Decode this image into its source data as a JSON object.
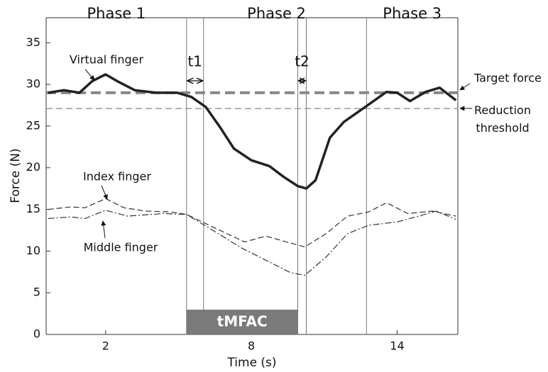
{
  "chart_data": {
    "type": "line",
    "xlabel": "Time (s)",
    "ylabel": "Force (N)",
    "xlim": [
      -0.45,
      16.5
    ],
    "ylim": [
      0,
      38
    ],
    "xticks": [
      2,
      8,
      14
    ],
    "yticks": [
      0,
      5,
      10,
      15,
      20,
      25,
      30,
      35
    ],
    "series": [
      {
        "name": "Virtual finger",
        "color": "#222222",
        "style": "solid",
        "x": [
          -0.37,
          0.28,
          0.92,
          1.45,
          2,
          2.47,
          3.2,
          4.07,
          4.95,
          5.53,
          6.12,
          6.7,
          7.28,
          8.0,
          8.74,
          9.33,
          9.91,
          10.26,
          10.64,
          11.23,
          11.81,
          12.74,
          13.56,
          14,
          14.53,
          15.17,
          15.75,
          16.42
        ],
        "values": [
          29.0,
          29.3,
          29.0,
          30.4,
          31.2,
          30.4,
          29.3,
          29.0,
          29.0,
          28.5,
          27.3,
          24.9,
          22.3,
          20.9,
          20.2,
          18.9,
          17.8,
          17.5,
          18.5,
          23.6,
          25.5,
          27.4,
          29.1,
          29.0,
          28.0,
          29.1,
          29.6,
          28.1
        ]
      },
      {
        "name": "Index finger",
        "color": "#333333",
        "style": "dashed",
        "x": [
          -0.37,
          0.57,
          1.15,
          2,
          2.76,
          3.64,
          4.66,
          5.33,
          6.41,
          7.72,
          8.6,
          9.33,
          10.2,
          11.08,
          11.96,
          12.83,
          13.56,
          14.44,
          15.46,
          16.42
        ],
        "values": [
          15.0,
          15.3,
          15.2,
          16.3,
          15.2,
          14.8,
          14.7,
          14.4,
          12.9,
          11.1,
          11.8,
          11.2,
          10.5,
          12.1,
          14.2,
          14.7,
          15.8,
          14.5,
          14.8,
          14.2
        ]
      },
      {
        "name": "Middle finger",
        "color": "#333333",
        "style": "dashdot",
        "x": [
          -0.37,
          0.57,
          1.15,
          2,
          2.9,
          4.36,
          5.33,
          6.41,
          7.58,
          8.74,
          9.62,
          10.2,
          11.08,
          11.96,
          12.83,
          14,
          14.88,
          15.61,
          16.42
        ],
        "values": [
          13.9,
          14.1,
          13.9,
          14.9,
          14.2,
          14.5,
          14.4,
          12.5,
          10.4,
          8.7,
          7.4,
          7.1,
          9.3,
          12.1,
          13.1,
          13.5,
          14.2,
          14.8,
          13.8
        ]
      }
    ],
    "reference_lines": [
      {
        "label": "Target force",
        "value": 29,
        "color": "#888888"
      },
      {
        "label": "Reduction threshold",
        "value": 27.1,
        "color": "#999999"
      }
    ],
    "vlines": [
      5.33,
      6.03,
      9.91,
      10.26,
      12.74
    ],
    "phases": [
      "Phase 1",
      "Phase 2",
      "Phase 3"
    ],
    "intervals": [
      "t1",
      "t2"
    ],
    "period_label": "tMFAC"
  }
}
